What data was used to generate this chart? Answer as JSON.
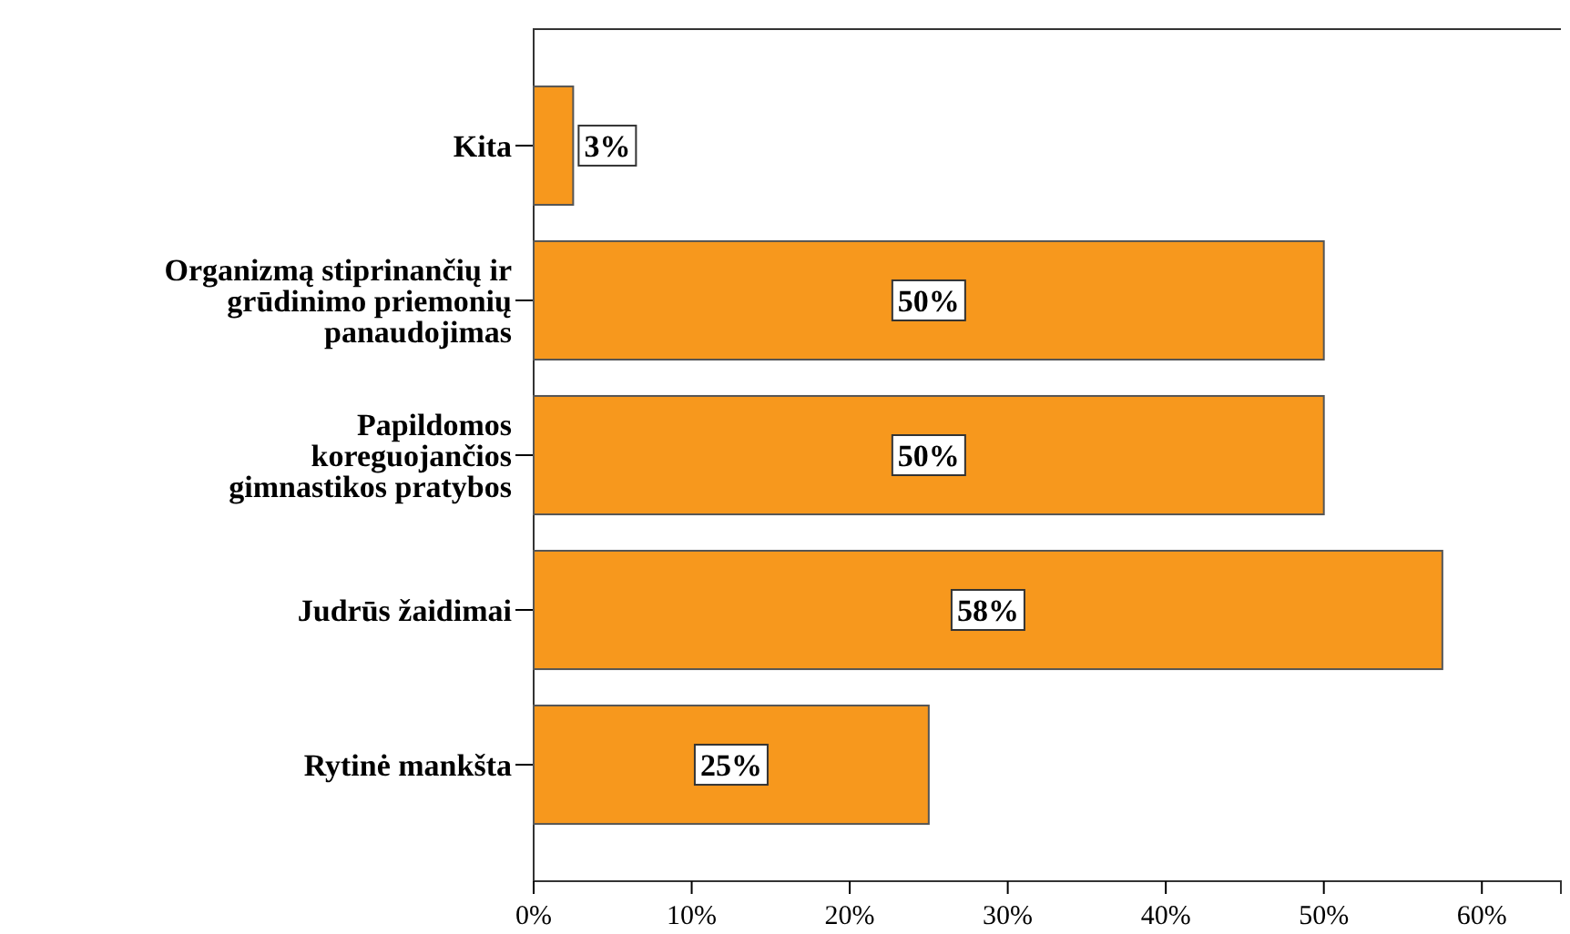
{
  "chart_data": {
    "type": "bar",
    "orientation": "horizontal",
    "categories": [
      "Kita",
      "Organizmą stiprinančių ir\ngrūdinimo priemonių\npanaudojimas",
      "Papildomos\nkoreguojančios\ngimnastikos pratybos",
      "Judrūs žaidimai",
      "Rytinė mankšta"
    ],
    "values": [
      2.5,
      50,
      50,
      57.5,
      25
    ],
    "value_labels": [
      "3%",
      "50%",
      "50%",
      "58%",
      "25%"
    ],
    "color": "#f7981d",
    "xlim": [
      0,
      65
    ],
    "xticks": [
      {
        "value": 0,
        "label": "0%"
      },
      {
        "value": 10,
        "label": "10%"
      },
      {
        "value": 20,
        "label": "20%"
      },
      {
        "value": 30,
        "label": "30%"
      },
      {
        "value": 40,
        "label": "40%"
      },
      {
        "value": 50,
        "label": "50%"
      },
      {
        "value": 60,
        "label": "60%"
      }
    ],
    "grid": false
  }
}
